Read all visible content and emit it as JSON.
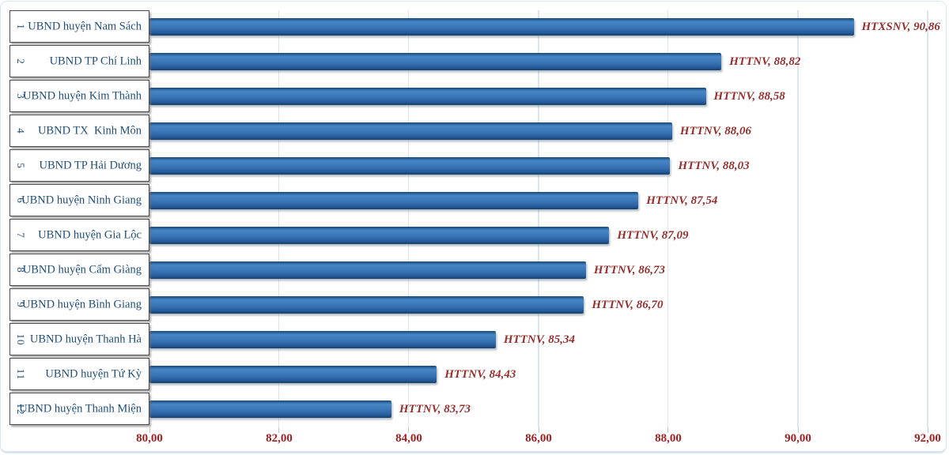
{
  "chart_data": {
    "type": "bar",
    "orientation": "horizontal",
    "title": "",
    "xlabel": "",
    "ylabel": "",
    "xlim": [
      80,
      92
    ],
    "grid": true,
    "legend": null,
    "axis_ticks": [
      {
        "value": 80,
        "label": "80,00"
      },
      {
        "value": 82,
        "label": "82,00"
      },
      {
        "value": 84,
        "label": "84,00"
      },
      {
        "value": 86,
        "label": "86,00"
      },
      {
        "value": 88,
        "label": "88,00"
      },
      {
        "value": 90,
        "label": "90,00"
      },
      {
        "value": 92,
        "label": "92,00"
      }
    ],
    "rows": [
      {
        "rank": "1",
        "name": "UBND huyện Nam Sách",
        "value": 90.86,
        "data_label": "HTXSNV, 90,86"
      },
      {
        "rank": "2",
        "name": "UBND TP Chí Linh",
        "value": 88.82,
        "data_label": "HTTNV, 88,82"
      },
      {
        "rank": "3",
        "name": "UBND huyện Kim Thành",
        "value": 88.58,
        "data_label": "HTTNV, 88,58"
      },
      {
        "rank": "4",
        "name": "UBND TX  Kinh Môn",
        "value": 88.06,
        "data_label": "HTTNV, 88,06"
      },
      {
        "rank": "5",
        "name": "UBND TP Hải Dương",
        "value": 88.03,
        "data_label": "HTTNV, 88,03"
      },
      {
        "rank": "6",
        "name": "UBND huyện Ninh Giang",
        "value": 87.54,
        "data_label": "HTTNV, 87,54"
      },
      {
        "rank": "7",
        "name": "UBND huyện Gia Lộc",
        "value": 87.09,
        "data_label": "HTTNV, 87,09"
      },
      {
        "rank": "8",
        "name": "UBND huyện Cẩm Giàng",
        "value": 86.73,
        "data_label": "HTTNV, 86,73"
      },
      {
        "rank": "9",
        "name": "UBND huyện Bình Giang",
        "value": 86.7,
        "data_label": "HTTNV, 86,70"
      },
      {
        "rank": "10",
        "name": "UBND huyện Thanh Hà",
        "value": 85.34,
        "data_label": "HTTNV, 85,34"
      },
      {
        "rank": "11",
        "name": "UBND huyện Tứ Kỳ",
        "value": 84.43,
        "data_label": "HTTNV, 84,43"
      },
      {
        "rank": "12",
        "name": "UBND huyện Thanh Miện",
        "value": 83.73,
        "data_label": "HTTNV, 83,73"
      }
    ],
    "colors": {
      "bar": "#3e7abb",
      "data_label_text": "#96302e",
      "axis_label_text": "#a32020",
      "category_text": "#1f4e79",
      "gridline": "#dde4ee",
      "frame": "#d9e4f1"
    }
  }
}
